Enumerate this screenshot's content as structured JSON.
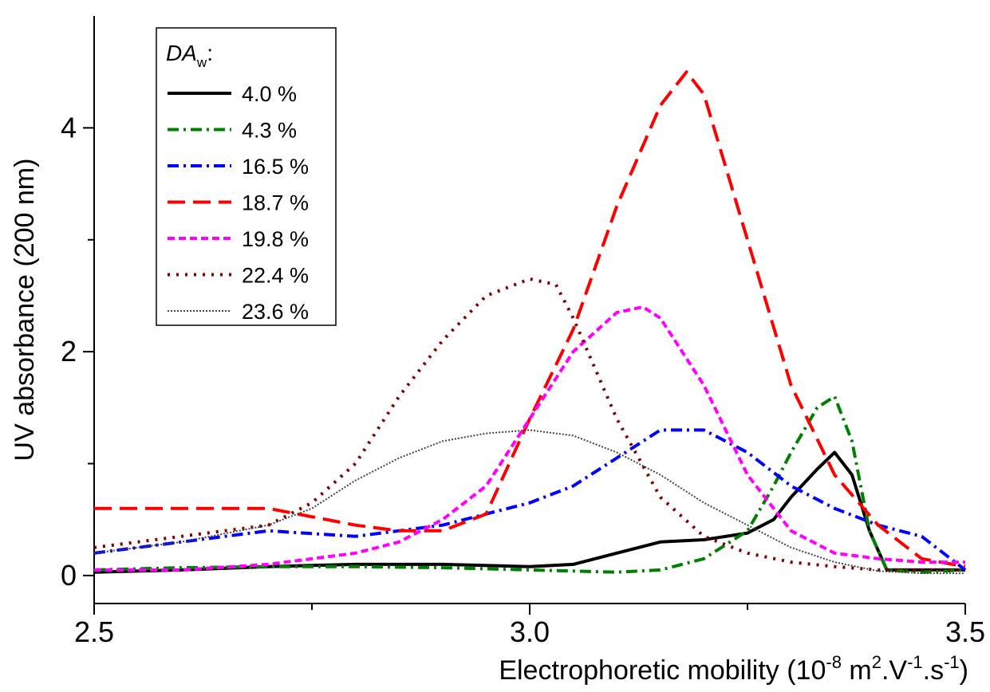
{
  "chart_data": {
    "type": "line",
    "xlabel_main": "Electrophoretic mobility (10",
    "xlabel_exp1": "-8",
    "xlabel_mid": " m",
    "xlabel_exp2": "2",
    "xlabel_mid2": ".V",
    "xlabel_exp3": "-1",
    "xlabel_mid3": ".s",
    "xlabel_exp4": "-1",
    "xlabel_end": ")",
    "ylabel": "UV absorbance (200 nm)",
    "xlim": [
      2.5,
      3.5
    ],
    "ylim": [
      -0.25,
      5.0
    ],
    "x_ticks": [
      2.5,
      3.0,
      3.5
    ],
    "x_tick_labels": [
      "2.5",
      "3.0",
      "3.5"
    ],
    "x_minor_ticks": [
      2.75,
      3.25
    ],
    "y_ticks": [
      0,
      2,
      4
    ],
    "y_tick_labels": [
      "0",
      "2",
      "4"
    ],
    "y_minor_ticks": [
      1,
      3
    ],
    "grid": false,
    "legend_position": "top-left",
    "legend_title_main": "DA",
    "legend_title_sub": "w",
    "legend_title_end": ":",
    "series": [
      {
        "name": "4.0 %",
        "color": "#000000",
        "dash": "solid",
        "x": [
          2.5,
          2.6,
          2.7,
          2.8,
          2.9,
          3.0,
          3.05,
          3.1,
          3.15,
          3.2,
          3.25,
          3.28,
          3.3,
          3.33,
          3.35,
          3.37,
          3.39,
          3.41,
          3.45,
          3.5
        ],
        "y": [
          0.03,
          0.05,
          0.08,
          0.1,
          0.1,
          0.08,
          0.1,
          0.2,
          0.3,
          0.32,
          0.38,
          0.5,
          0.7,
          0.95,
          1.1,
          0.9,
          0.4,
          0.05,
          0.05,
          0.05
        ]
      },
      {
        "name": "4.3 %",
        "color": "#008000",
        "dash": "dashdot",
        "x": [
          2.5,
          2.6,
          2.7,
          2.8,
          2.9,
          3.0,
          3.1,
          3.15,
          3.2,
          3.25,
          3.28,
          3.3,
          3.33,
          3.35,
          3.37,
          3.39,
          3.41,
          3.45,
          3.5
        ],
        "y": [
          0.05,
          0.07,
          0.08,
          0.08,
          0.07,
          0.05,
          0.03,
          0.05,
          0.15,
          0.4,
          0.8,
          1.1,
          1.5,
          1.6,
          1.2,
          0.4,
          0.05,
          0.03,
          0.05
        ]
      },
      {
        "name": "16.5 %",
        "color": "#0000ff",
        "dash": "dashdot",
        "x": [
          2.5,
          2.6,
          2.7,
          2.8,
          2.9,
          3.0,
          3.05,
          3.1,
          3.15,
          3.2,
          3.25,
          3.3,
          3.35,
          3.4,
          3.45,
          3.5
        ],
        "y": [
          0.2,
          0.3,
          0.4,
          0.35,
          0.45,
          0.65,
          0.8,
          1.05,
          1.3,
          1.3,
          1.1,
          0.8,
          0.6,
          0.45,
          0.35,
          0.05
        ]
      },
      {
        "name": "18.7 %",
        "color": "#ff0000",
        "dash": "dash",
        "x": [
          2.5,
          2.6,
          2.7,
          2.8,
          2.85,
          2.9,
          2.95,
          3.0,
          3.05,
          3.1,
          3.15,
          3.18,
          3.2,
          3.25,
          3.3,
          3.35,
          3.4,
          3.45,
          3.5
        ],
        "y": [
          0.6,
          0.6,
          0.6,
          0.45,
          0.4,
          0.4,
          0.55,
          1.4,
          2.2,
          3.3,
          4.2,
          4.5,
          4.3,
          3.0,
          1.7,
          0.9,
          0.45,
          0.15,
          0.08
        ]
      },
      {
        "name": "19.8 %",
        "color": "#ff00ff",
        "dash": "shortdash",
        "x": [
          2.5,
          2.6,
          2.7,
          2.8,
          2.85,
          2.9,
          2.95,
          3.0,
          3.05,
          3.1,
          3.13,
          3.15,
          3.2,
          3.25,
          3.3,
          3.35,
          3.4,
          3.45,
          3.5
        ],
        "y": [
          0.05,
          0.05,
          0.1,
          0.2,
          0.3,
          0.5,
          0.8,
          1.4,
          2.0,
          2.35,
          2.4,
          2.3,
          1.7,
          0.9,
          0.4,
          0.2,
          0.15,
          0.12,
          0.12
        ]
      },
      {
        "name": "22.4 %",
        "color": "#800000",
        "dash": "dot",
        "x": [
          2.5,
          2.6,
          2.7,
          2.75,
          2.8,
          2.85,
          2.9,
          2.95,
          3.0,
          3.03,
          3.05,
          3.1,
          3.15,
          3.2,
          3.25,
          3.3,
          3.35,
          3.4,
          3.45,
          3.5
        ],
        "y": [
          0.25,
          0.35,
          0.45,
          0.65,
          1.0,
          1.6,
          2.1,
          2.5,
          2.65,
          2.6,
          2.3,
          1.4,
          0.7,
          0.35,
          0.2,
          0.12,
          0.08,
          0.05,
          0.05,
          0.05
        ]
      },
      {
        "name": "23.6 %",
        "color": "#444444",
        "dash": "fine",
        "x": [
          2.5,
          2.6,
          2.7,
          2.75,
          2.8,
          2.85,
          2.9,
          2.95,
          3.0,
          3.05,
          3.1,
          3.15,
          3.2,
          3.25,
          3.3,
          3.35,
          3.4,
          3.45,
          3.5
        ],
        "y": [
          0.2,
          0.3,
          0.45,
          0.6,
          0.85,
          1.05,
          1.2,
          1.27,
          1.3,
          1.25,
          1.1,
          0.9,
          0.65,
          0.45,
          0.25,
          0.12,
          0.04,
          0.02,
          0.02
        ]
      }
    ]
  }
}
